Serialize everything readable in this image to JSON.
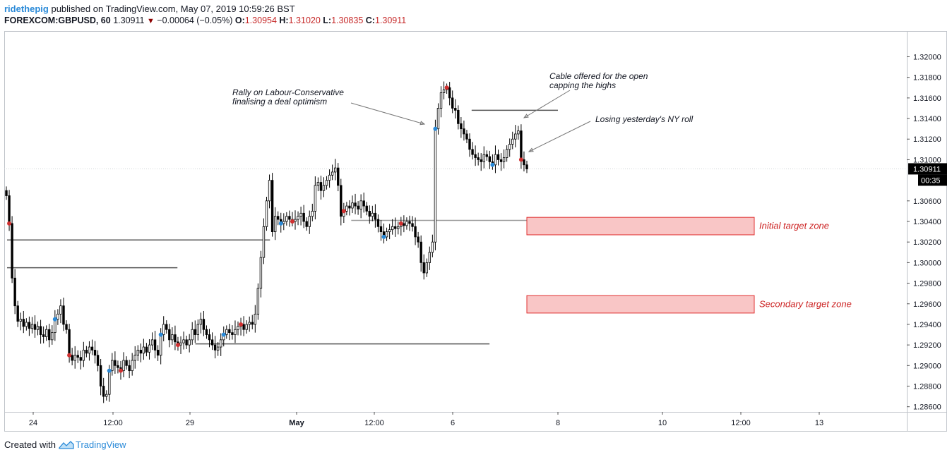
{
  "header": {
    "author": "ridethepig",
    "published_text": "published on TradingView.com, May 07, 2019 10:59:26 BST",
    "symbol": "FOREXCOM:GBPUSD, 60",
    "last": "1.30911",
    "change": "−0.00064 (−0.05%)",
    "o_label": "O:",
    "o_value": "1.30954",
    "h_label": "H:",
    "h_value": "1.31020",
    "l_label": "L:",
    "l_value": "1.30835",
    "c_label": "C:",
    "c_value": "1.30911"
  },
  "footer": {
    "created_with": "Created with",
    "brand": "TradingView"
  },
  "colors": {
    "up": "#ffffff",
    "down": "#000000",
    "wick": "#000000",
    "level": "#555555",
    "level_light": "#9a9a9a",
    "zone_fill": "#f9c6c6",
    "zone_stroke": "#e03030",
    "zone_text": "#cc2222",
    "dot_red": "#d13030",
    "dot_blue": "#2a8ad8"
  },
  "chart_data": {
    "type": "candlestick",
    "ylim": [
      1.2855,
      1.3225
    ],
    "y_ticks": [
      "1.32000",
      "1.31800",
      "1.31600",
      "1.31400",
      "1.31200",
      "1.31000",
      "1.30600",
      "1.30400",
      "1.30200",
      "1.30000",
      "1.29800",
      "1.29600",
      "1.29400",
      "1.29200",
      "1.29000",
      "1.28800",
      "1.28600"
    ],
    "x_ticks": [
      "24",
      "12:00",
      "29",
      "May",
      "12:00",
      "6",
      "8",
      "10",
      "12:00",
      "13"
    ],
    "last_price_label": "1.30911",
    "countdown_label": "00:35",
    "last_price": 1.30911,
    "series_close": [
      1.3065,
      1.3038,
      1.2985,
      1.2958,
      1.2943,
      1.2945,
      1.2938,
      1.2942,
      1.2936,
      1.294,
      1.2935,
      1.2938,
      1.293,
      1.2928,
      1.2935,
      1.2925,
      1.2932,
      1.2945,
      1.295,
      1.2958,
      1.294,
      1.2935,
      1.291,
      1.2905,
      1.291,
      1.2908,
      1.2905,
      1.2915,
      1.2912,
      1.2918,
      1.2915,
      1.291,
      1.29,
      1.288,
      1.287,
      1.2872,
      1.2895,
      1.2905,
      1.29,
      1.2898,
      1.2895,
      1.2905,
      1.29,
      1.2895,
      1.2905,
      1.291,
      1.2915,
      1.2912,
      1.2918,
      1.2913,
      1.292,
      1.2925,
      1.2915,
      1.291,
      1.293,
      1.294,
      1.2935,
      1.2925,
      1.293,
      1.2923,
      1.292,
      1.2922,
      1.2925,
      1.292,
      1.2925,
      1.2935,
      1.293,
      1.294,
      1.2945,
      1.2935,
      1.293,
      1.2925,
      1.292,
      1.2915,
      1.2918,
      1.2925,
      1.293,
      1.2935,
      1.2932,
      1.293,
      1.2935,
      1.2938,
      1.294,
      1.2935,
      1.294,
      1.2942,
      1.294,
      1.295,
      1.2975,
      1.3005,
      1.3035,
      1.306,
      1.308,
      1.303,
      1.3045,
      1.3042,
      1.3038,
      1.304,
      1.3045,
      1.3042,
      1.304,
      1.3042,
      1.3045,
      1.3048,
      1.304,
      1.3035,
      1.3045,
      1.305,
      1.3075,
      1.3078,
      1.307,
      1.3075,
      1.308,
      1.3085,
      1.3088,
      1.3092,
      1.3075,
      1.3045,
      1.305,
      1.3055,
      1.3053,
      1.3058,
      1.3055,
      1.3052,
      1.306,
      1.3055,
      1.305,
      1.3045,
      1.3048,
      1.3042,
      1.3035,
      1.303,
      1.3025,
      1.303,
      1.3032,
      1.3035,
      1.3033,
      1.3035,
      1.3038,
      1.3036,
      1.304,
      1.3038,
      1.3035,
      1.3025,
      1.302,
      1.3,
      1.299,
      1.3,
      1.301,
      1.302,
      1.313,
      1.315,
      1.3165,
      1.3168,
      1.317,
      1.316,
      1.315,
      1.3148,
      1.3135,
      1.313,
      1.3125,
      1.312,
      1.311,
      1.3105,
      1.3102,
      1.31,
      1.3098,
      1.3105,
      1.3103,
      1.3098,
      1.3095,
      1.3105,
      1.31,
      1.3098,
      1.3102,
      1.311,
      1.3115,
      1.312,
      1.3125,
      1.3128,
      1.31,
      1.3095,
      1.3091
    ]
  },
  "annotations": {
    "rally": [
      "Rally on Labour-Conservative",
      "finalising a deal optimism"
    ],
    "cable": [
      "Cable offered for the open",
      "capping the highs"
    ],
    "losing": "Losing yesterday's NY roll",
    "initial": "Initial target zone",
    "secondary": "Secondary target zone"
  },
  "levels": [
    {
      "price": 1.2995,
      "from_day": 0,
      "to_day": 1.92
    },
    {
      "price": 1.3022,
      "from_day": 0,
      "to_day": 2.75
    },
    {
      "price": 1.2921,
      "from_day": 2.05,
      "to_day": 4.35
    },
    {
      "price": 1.3041,
      "from_day": 3.35,
      "to_day": 5.0
    },
    {
      "price": 1.3148,
      "from_day": 4.18,
      "to_day": 5.0
    }
  ],
  "zones": [
    {
      "label_key": "initial",
      "from": 1.3027,
      "to": 1.3044
    },
    {
      "label_key": "secondary",
      "from": 1.2951,
      "to": 1.2968
    }
  ]
}
